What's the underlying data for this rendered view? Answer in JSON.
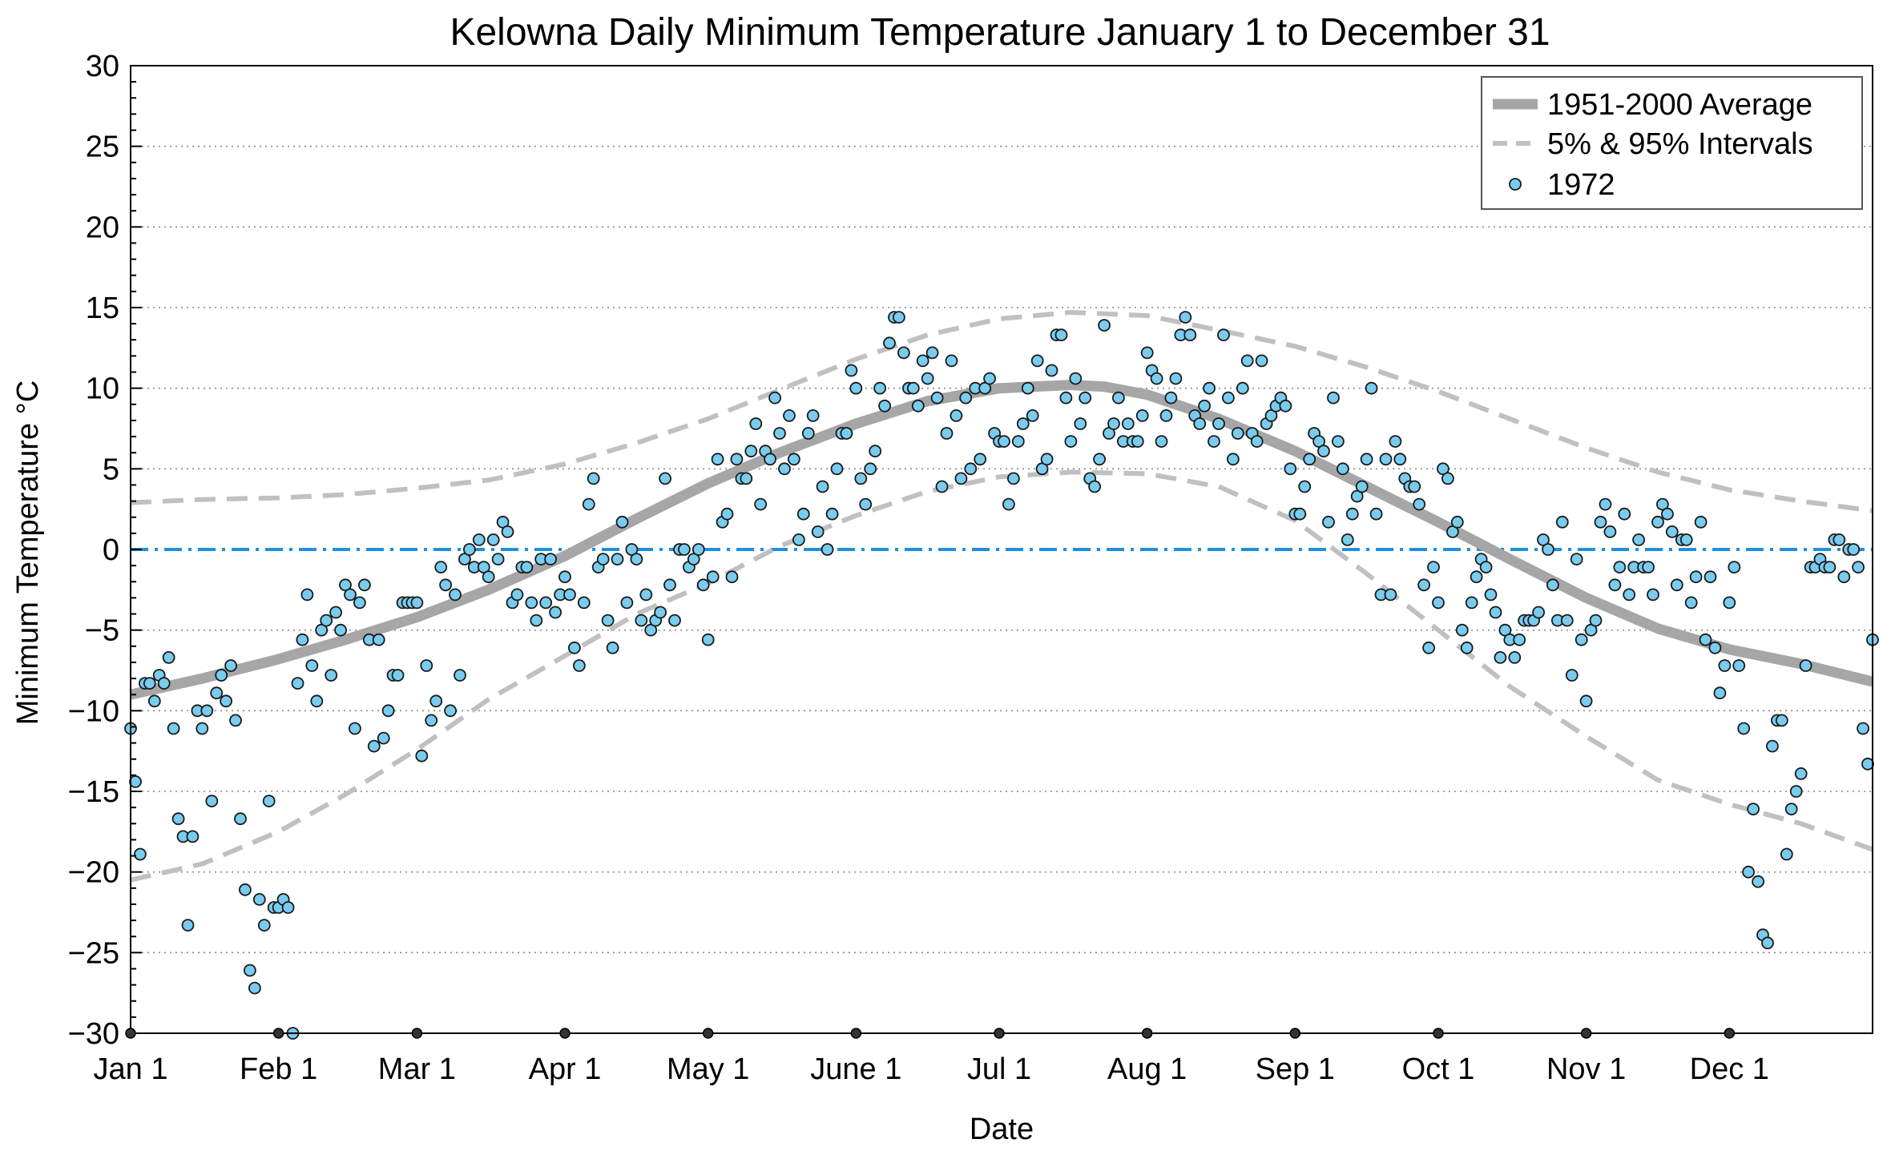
{
  "chart_data": {
    "type": "scatter",
    "title": "Kelowna Daily Minimum Temperature January 1 to December 31",
    "xlabel": "Date",
    "ylabel": "Minimum Temperature °C",
    "xlim": [
      1,
      366
    ],
    "ylim": [
      -30,
      30
    ],
    "y_ticks": [
      30,
      25,
      20,
      15,
      10,
      5,
      0,
      -5,
      -10,
      -15,
      -20,
      -25,
      -30
    ],
    "y_tick_labels": [
      "30",
      "25",
      "20",
      "15",
      "10",
      "5",
      "0",
      "−5",
      "−10",
      "−15",
      "−20",
      "−25",
      "−30"
    ],
    "x_ticks": [
      {
        "day": 1,
        "label": "Jan 1"
      },
      {
        "day": 32,
        "label": "Feb 1"
      },
      {
        "day": 61,
        "label": "Mar 1"
      },
      {
        "day": 92,
        "label": "Apr 1"
      },
      {
        "day": 122,
        "label": "May 1"
      },
      {
        "day": 153,
        "label": "June 1"
      },
      {
        "day": 183,
        "label": "Jul 1"
      },
      {
        "day": 214,
        "label": "Aug 1"
      },
      {
        "day": 245,
        "label": "Sep 1"
      },
      {
        "day": 275,
        "label": "Oct 1"
      },
      {
        "day": 306,
        "label": "Nov 1"
      },
      {
        "day": 336,
        "label": "Dec 1"
      }
    ],
    "grid": "horizontal dotted",
    "legend_position": "top-right",
    "legend": [
      "1951-2000 Average",
      "5% & 95% Intervals",
      "1972"
    ],
    "colors": {
      "average": "#a6a6a6",
      "intervals": "#c0c0c0",
      "points_fill": "#79ccee",
      "points_edge": "#1a1a1a",
      "zero_line": "#1f8fe0"
    },
    "series": [
      {
        "name": "1951-2000 Average",
        "style": "thick solid line",
        "x": [
          1,
          16,
          32,
          46,
          61,
          76,
          92,
          107,
          122,
          137,
          153,
          168,
          183,
          198,
          205,
          214,
          229,
          245,
          260,
          275,
          290,
          306,
          321,
          336,
          351,
          366
        ],
        "y": [
          -9.0,
          -8.0,
          -6.8,
          -5.6,
          -4.2,
          -2.5,
          -0.4,
          1.9,
          4.1,
          6.0,
          7.8,
          9.2,
          10.0,
          10.2,
          10.1,
          9.6,
          8.1,
          6.1,
          3.9,
          1.7,
          -0.6,
          -3.0,
          -4.9,
          -6.2,
          -7.1,
          -8.2
        ]
      },
      {
        "name": "5% & 95% Intervals",
        "style": "dashed line (upper)",
        "x": [
          1,
          16,
          32,
          46,
          61,
          76,
          92,
          107,
          122,
          137,
          153,
          168,
          183,
          198,
          214,
          229,
          245,
          260,
          275,
          290,
          306,
          321,
          336,
          351,
          366
        ],
        "y": [
          2.9,
          3.1,
          3.2,
          3.4,
          3.8,
          4.3,
          5.3,
          6.6,
          8.1,
          9.9,
          11.8,
          13.3,
          14.3,
          14.7,
          14.5,
          13.6,
          12.6,
          11.3,
          9.8,
          8.1,
          6.3,
          4.8,
          3.7,
          3.0,
          2.4
        ]
      },
      {
        "name": "5% & 95% Intervals (lower)",
        "style": "dashed line (lower)",
        "x": [
          1,
          16,
          32,
          46,
          61,
          76,
          92,
          107,
          122,
          137,
          153,
          168,
          183,
          198,
          214,
          229,
          245,
          260,
          275,
          290,
          306,
          321,
          336,
          351,
          366
        ],
        "y": [
          -20.5,
          -19.5,
          -17.5,
          -15.2,
          -12.4,
          -9.3,
          -6.6,
          -4.0,
          -2.1,
          0.2,
          2.1,
          3.6,
          4.5,
          4.8,
          4.7,
          3.9,
          1.8,
          -1.5,
          -5.0,
          -8.5,
          -11.6,
          -14.3,
          -15.8,
          -17.0,
          -18.6
        ]
      },
      {
        "name": "1972",
        "style": "circle markers",
        "x": [
          1,
          2,
          3,
          4,
          5,
          6,
          7,
          8,
          9,
          10,
          11,
          12,
          13,
          14,
          15,
          16,
          17,
          18,
          19,
          20,
          21,
          22,
          23,
          24,
          25,
          26,
          27,
          28,
          29,
          30,
          31,
          32,
          33,
          34,
          35,
          36,
          37,
          38,
          39,
          40,
          41,
          42,
          43,
          44,
          45,
          46,
          47,
          48,
          49,
          50,
          51,
          52,
          53,
          54,
          55,
          56,
          57,
          58,
          59,
          60,
          61,
          62,
          63,
          64,
          65,
          66,
          67,
          68,
          69,
          70,
          71,
          72,
          73,
          74,
          75,
          76,
          77,
          78,
          79,
          80,
          81,
          82,
          83,
          84,
          85,
          86,
          87,
          88,
          89,
          90,
          91,
          92,
          93,
          94,
          95,
          96,
          97,
          98,
          99,
          100,
          101,
          102,
          103,
          104,
          105,
          106,
          107,
          108,
          109,
          110,
          111,
          112,
          113,
          114,
          115,
          116,
          117,
          118,
          119,
          120,
          121,
          122,
          123,
          124,
          125,
          126,
          127,
          128,
          129,
          130,
          131,
          132,
          133,
          134,
          135,
          136,
          137,
          138,
          139,
          140,
          141,
          142,
          143,
          144,
          145,
          146,
          147,
          148,
          149,
          150,
          151,
          152,
          153,
          154,
          155,
          156,
          157,
          158,
          159,
          160,
          161,
          162,
          163,
          164,
          165,
          166,
          167,
          168,
          169,
          170,
          171,
          172,
          173,
          174,
          175,
          176,
          177,
          178,
          179,
          180,
          181,
          182,
          183,
          184,
          185,
          186,
          187,
          188,
          189,
          190,
          191,
          192,
          193,
          194,
          195,
          196,
          197,
          198,
          199,
          200,
          201,
          202,
          203,
          204,
          205,
          206,
          207,
          208,
          209,
          210,
          211,
          212,
          213,
          214,
          215,
          216,
          217,
          218,
          219,
          220,
          221,
          222,
          223,
          224,
          225,
          226,
          227,
          228,
          229,
          230,
          231,
          232,
          233,
          234,
          235,
          236,
          237,
          238,
          239,
          240,
          241,
          242,
          243,
          244,
          245,
          246,
          247,
          248,
          249,
          250,
          251,
          252,
          253,
          254,
          255,
          256,
          257,
          258,
          259,
          260,
          261,
          262,
          263,
          264,
          265,
          266,
          267,
          268,
          269,
          270,
          271,
          272,
          273,
          274,
          275,
          276,
          277,
          278,
          279,
          280,
          281,
          282,
          283,
          284,
          285,
          286,
          287,
          288,
          289,
          290,
          291,
          292,
          293,
          294,
          295,
          296,
          297,
          298,
          299,
          300,
          301,
          302,
          303,
          304,
          305,
          306,
          307,
          308,
          309,
          310,
          311,
          312,
          313,
          314,
          315,
          316,
          317,
          318,
          319,
          320,
          321,
          322,
          323,
          324,
          325,
          326,
          327,
          328,
          329,
          330,
          331,
          332,
          333,
          334,
          335,
          336,
          337,
          338,
          339,
          340,
          341,
          342,
          343,
          344,
          345,
          346,
          347,
          348,
          349,
          350,
          351,
          352,
          353,
          354,
          355,
          356,
          357,
          358,
          359,
          360,
          361,
          362,
          363,
          364,
          365,
          366
        ],
        "y": [
          -11.1,
          -14.4,
          -18.9,
          -8.3,
          -8.3,
          -9.4,
          -7.8,
          -8.3,
          -6.7,
          -11.1,
          -16.7,
          -17.8,
          -23.3,
          -17.8,
          -10.0,
          -11.1,
          -10.0,
          -15.6,
          -8.9,
          -7.8,
          -9.4,
          -7.2,
          -10.6,
          -16.7,
          -21.1,
          -26.1,
          -27.2,
          -21.7,
          -23.3,
          -15.6,
          -22.2,
          -22.2,
          -21.7,
          -22.2,
          -30.0,
          -8.3,
          -5.6,
          -2.8,
          -7.2,
          -9.4,
          -5.0,
          -4.4,
          -7.8,
          -3.9,
          -5.0,
          -2.2,
          -2.8,
          -11.1,
          -3.3,
          -2.2,
          -5.6,
          -12.2,
          -5.6,
          -11.7,
          -10.0,
          -7.8,
          -7.8,
          -3.3,
          -3.3,
          -3.3,
          -3.3,
          -12.8,
          -7.2,
          -10.6,
          -9.4,
          -1.1,
          -2.2,
          -10.0,
          -2.8,
          -7.8,
          -0.6,
          0.0,
          -1.1,
          0.6,
          -1.1,
          -1.7,
          0.6,
          -0.6,
          1.7,
          1.1,
          -3.3,
          -2.8,
          -1.1,
          -1.1,
          -3.3,
          -4.4,
          -0.6,
          -3.3,
          -0.6,
          -3.9,
          -2.8,
          -1.7,
          -2.8,
          -6.1,
          -7.2,
          -3.3,
          2.8,
          4.4,
          -1.1,
          -0.6,
          -4.4,
          -6.1,
          -0.6,
          1.7,
          -3.3,
          0.0,
          -0.6,
          -4.4,
          -2.8,
          -5.0,
          -4.4,
          -3.9,
          4.4,
          -2.2,
          -4.4,
          0.0,
          0.0,
          -1.1,
          -0.6,
          0.0,
          -2.2,
          -5.6,
          -1.7,
          5.6,
          1.7,
          2.2,
          -1.7,
          5.6,
          4.4,
          4.4,
          6.1,
          7.8,
          2.8,
          6.1,
          5.6,
          9.4,
          7.2,
          5.0,
          8.3,
          5.6,
          0.6,
          2.2,
          7.2,
          8.3,
          1.1,
          3.9,
          0.0,
          2.2,
          5.0,
          7.2,
          7.2,
          11.1,
          10.0,
          4.4,
          2.8,
          5.0,
          6.1,
          10.0,
          8.9,
          12.8,
          14.4,
          14.4,
          12.2,
          10.0,
          10.0,
          8.9,
          11.7,
          10.6,
          12.2,
          9.4,
          3.9,
          7.2,
          11.7,
          8.3,
          4.4,
          9.4,
          5.0,
          10.0,
          5.6,
          10.0,
          10.6,
          7.2,
          6.7,
          6.7,
          2.8,
          4.4,
          6.7,
          7.8,
          10.0,
          8.3,
          11.7,
          5.0,
          5.6,
          11.1,
          13.3,
          13.3,
          9.4,
          6.7,
          10.6,
          7.8,
          9.4,
          4.4,
          3.9,
          5.6,
          13.9,
          7.2,
          7.8,
          9.4,
          6.7,
          7.8,
          6.7,
          6.7,
          8.3,
          12.2,
          11.1,
          10.6,
          6.7,
          8.3,
          9.4,
          10.6,
          13.3,
          14.4,
          13.3,
          8.3,
          7.8,
          8.9,
          10.0,
          6.7,
          7.8,
          13.3,
          9.4,
          5.6,
          7.2,
          10.0,
          11.7,
          7.2,
          6.7,
          11.7,
          7.8,
          8.3,
          8.9,
          9.4,
          8.9,
          5.0,
          2.2,
          2.2,
          3.9,
          5.6,
          7.2,
          6.7,
          6.1,
          1.7,
          9.4,
          6.7,
          5.0,
          0.6,
          2.2,
          3.3,
          3.9,
          5.6,
          10.0,
          2.2,
          -2.8,
          5.6,
          -2.8,
          6.7,
          5.6,
          4.4,
          3.9,
          3.9,
          2.8,
          -2.2,
          -6.1,
          -1.1,
          -3.3,
          5.0,
          4.4,
          1.1,
          1.7,
          -5.0,
          -6.1,
          -3.3,
          -1.7,
          -0.6,
          -1.1,
          -2.8,
          -3.9,
          -6.7,
          -5.0,
          -5.6,
          -6.7,
          -5.6,
          -4.4,
          -4.4,
          -4.4,
          -3.9,
          0.6,
          0.0,
          -2.2,
          -4.4,
          1.7,
          -4.4,
          -7.8,
          -0.6,
          -5.6,
          -9.4,
          -5.0,
          -4.4,
          1.7,
          2.8,
          1.1,
          -2.2,
          -1.1,
          2.2,
          -2.8,
          -1.1,
          0.6,
          -1.1,
          -1.1,
          -2.8,
          1.7,
          2.8,
          2.2,
          1.1,
          -2.2,
          0.6,
          0.6,
          -3.3,
          -1.7,
          1.7,
          -5.6,
          -1.7,
          -6.1,
          -8.9,
          -7.2,
          -3.3,
          -1.1,
          -7.2,
          -11.1,
          -20.0,
          -16.1,
          -20.6,
          -23.9,
          -24.4,
          -12.2,
          -10.6,
          -10.6,
          -18.9,
          -16.1,
          -15.0,
          -13.9,
          -7.2,
          -1.1,
          -1.1,
          -0.6,
          -1.1,
          -1.1,
          0.6,
          0.6,
          -1.7,
          0.0,
          0.0,
          -1.1,
          -11.1,
          -13.3,
          -5.6
        ]
      }
    ]
  }
}
